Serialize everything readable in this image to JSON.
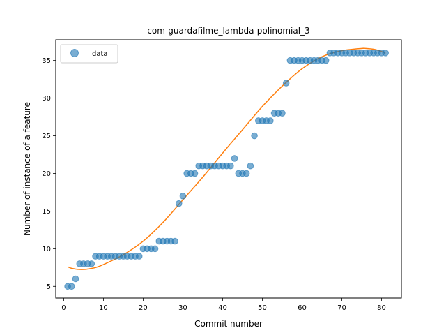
{
  "chart_data": {
    "type": "scatter",
    "title": "com-guardafilme_lambda-polinomial_3",
    "xlabel": "Commit number",
    "ylabel": "Number of instance of a feature",
    "xlim": [
      -2.0,
      85.0
    ],
    "ylim": [
      3.45,
      37.75
    ],
    "xticks": [
      0,
      10,
      20,
      30,
      40,
      50,
      60,
      70,
      80
    ],
    "yticks": [
      5,
      10,
      15,
      20,
      25,
      30,
      35
    ],
    "grid": false,
    "legend": {
      "placement": "top-left",
      "entries": [
        "data"
      ]
    },
    "colors": {
      "data": "#1f77b4",
      "fit": "#ff7f0e"
    },
    "series": [
      {
        "name": "data",
        "kind": "scatter",
        "x": [
          1,
          2,
          3,
          4,
          5,
          6,
          7,
          8,
          9,
          10,
          11,
          12,
          13,
          14,
          15,
          16,
          17,
          18,
          19,
          20,
          21,
          22,
          23,
          24,
          25,
          26,
          27,
          28,
          29,
          30,
          31,
          32,
          33,
          34,
          35,
          36,
          37,
          38,
          39,
          40,
          41,
          42,
          43,
          44,
          45,
          46,
          47,
          48,
          49,
          50,
          51,
          52,
          53,
          54,
          55,
          56,
          57,
          58,
          59,
          60,
          61,
          62,
          63,
          64,
          65,
          66,
          67,
          68,
          69,
          70,
          71,
          72,
          73,
          74,
          75,
          76,
          77,
          78,
          79,
          80,
          81
        ],
        "y": [
          5,
          5,
          6,
          8,
          8,
          8,
          8,
          9,
          9,
          9,
          9,
          9,
          9,
          9,
          9,
          9,
          9,
          9,
          9,
          10,
          10,
          10,
          10,
          11,
          11,
          11,
          11,
          11,
          16,
          17,
          20,
          20,
          20,
          21,
          21,
          21,
          21,
          21,
          21,
          21,
          21,
          21,
          22,
          20,
          20,
          20,
          21,
          25,
          27,
          27,
          27,
          27,
          28,
          28,
          28,
          32,
          35,
          35,
          35,
          35,
          35,
          35,
          35,
          35,
          35,
          35,
          36,
          36,
          36,
          36,
          36,
          36,
          36,
          36,
          36,
          36,
          36,
          36,
          36,
          36,
          36
        ]
      },
      {
        "kind": "line",
        "x": [
          1,
          2,
          3,
          4,
          5,
          6,
          8,
          10,
          15,
          20,
          25,
          30,
          35,
          40,
          45,
          50,
          55,
          60,
          65,
          70,
          75,
          76,
          78,
          80,
          81
        ],
        "y": [
          7.6,
          7.4,
          7.3,
          7.25,
          7.25,
          7.3,
          7.5,
          7.9,
          9.2,
          11.0,
          13.5,
          16.5,
          19.5,
          22.7,
          25.8,
          28.9,
          31.6,
          33.9,
          35.5,
          36.3,
          36.6,
          36.6,
          36.5,
          36.2,
          35.95
        ]
      }
    ]
  }
}
